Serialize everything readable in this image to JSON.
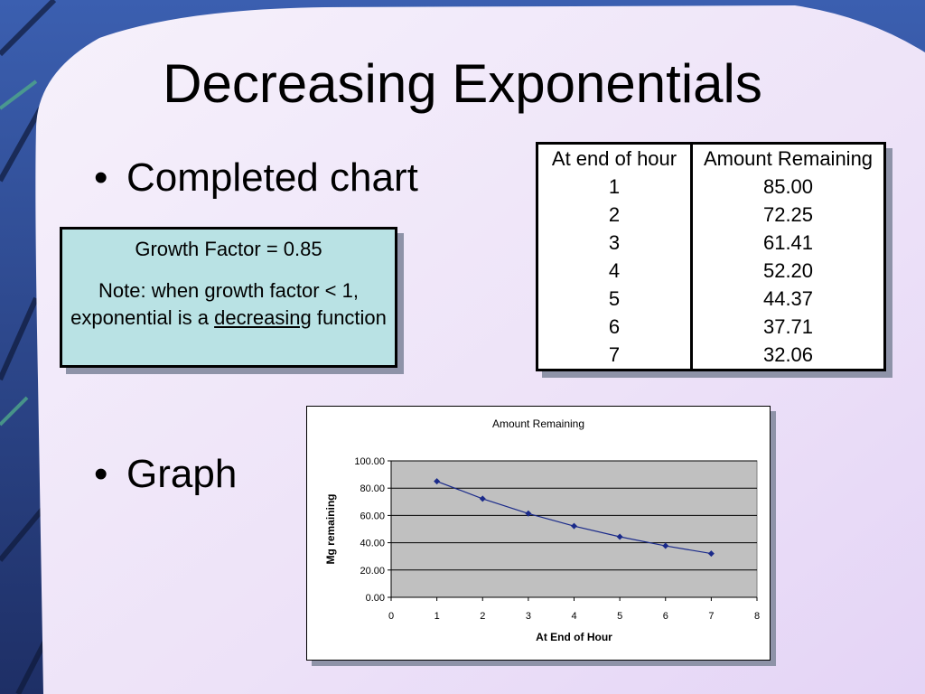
{
  "slide": {
    "title": "Decreasing Exponentials",
    "bullets": [
      "Completed chart",
      "Graph"
    ],
    "bullet_marker": "•"
  },
  "note_box": {
    "growth_factor": "Growth Factor = 0.85",
    "note_prefix": "Note: when growth factor < 1, exponential is a ",
    "note_emphasis": "decreasing",
    "note_suffix": " function"
  },
  "table": {
    "headers": [
      "At end of hour",
      "Amount Remaining"
    ],
    "rows": [
      [
        "1",
        "85.00"
      ],
      [
        "2",
        "72.25"
      ],
      [
        "3",
        "61.41"
      ],
      [
        "4",
        "52.20"
      ],
      [
        "5",
        "44.37"
      ],
      [
        "6",
        "37.71"
      ],
      [
        "7",
        "32.06"
      ]
    ]
  },
  "chart_data": {
    "type": "line",
    "title": "Amount Remaining",
    "xlabel": "At End of Hour",
    "ylabel": "Mg remaining",
    "x": [
      1,
      2,
      3,
      4,
      5,
      6,
      7
    ],
    "series": [
      {
        "values": [
          85.0,
          72.25,
          61.41,
          52.2,
          44.37,
          37.71,
          32.06
        ]
      }
    ],
    "xlim": [
      0,
      8
    ],
    "ylim": [
      0,
      100
    ],
    "x_ticks": [
      "0",
      "1",
      "2",
      "3",
      "4",
      "5",
      "6",
      "7",
      "8"
    ],
    "y_ticks": [
      "0.00",
      "20.00",
      "40.00",
      "60.00",
      "80.00",
      "100.00"
    ],
    "grid": true,
    "legend": "none",
    "colors": {
      "line": "#1a2a8a",
      "plot_bg": "#c0c0c0"
    }
  }
}
